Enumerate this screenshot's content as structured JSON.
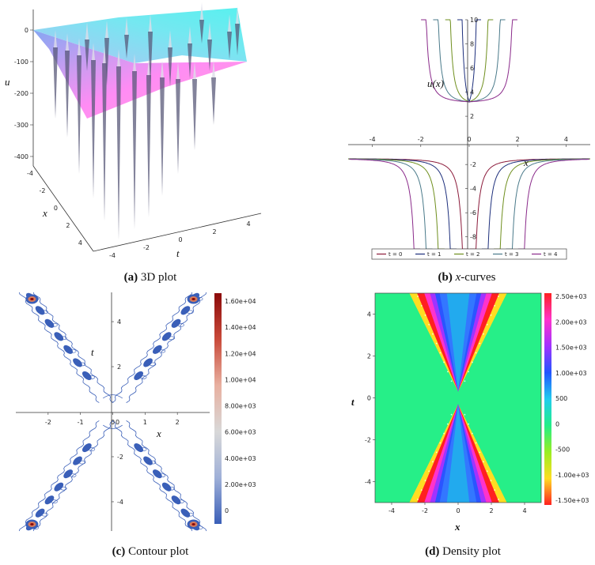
{
  "captions": {
    "a": {
      "letter": "(a)",
      "text": "3D plot"
    },
    "b": {
      "letter": "(b)",
      "text_x": "x",
      "text_rest": "-curves"
    },
    "c": {
      "letter": "(c)",
      "text": "Contour plot"
    },
    "d": {
      "letter": "(d)",
      "text": "Density plot"
    }
  },
  "chart_data": [
    {
      "id": "a",
      "type": "surface",
      "zlabel": "u",
      "xlabel": "x",
      "ylabel": "t",
      "z_ticks": [
        "0",
        "-100",
        "-200",
        "-300",
        "-400"
      ],
      "x_ticks": [
        "-4",
        "-2",
        "0",
        "2",
        "4"
      ],
      "t_ticks": [
        "-4",
        "-2",
        "0",
        "2",
        "4"
      ],
      "colors": [
        "#55e8ee",
        "#7ab2f0",
        "#c98bf2",
        "#ff7ff6"
      ]
    },
    {
      "id": "b",
      "type": "line",
      "xlabel": "x",
      "ylabel": "u(x)",
      "xlim": [
        -5,
        5
      ],
      "ylim": [
        -9,
        10
      ],
      "x_ticks": [
        -4,
        -2,
        0,
        2,
        4
      ],
      "y_ticks": [
        -8,
        -6,
        -4,
        -2,
        2,
        4,
        6,
        8,
        10
      ],
      "legend_position": "bottom",
      "series": [
        {
          "name": "t = 0",
          "color": "#8b1a3a",
          "singularity": 0.0
        },
        {
          "name": "t = 1",
          "color": "#1d2f7c",
          "singularity": 0.5
        },
        {
          "name": "t = 2",
          "color": "#6f8f1e",
          "singularity": 1.0
        },
        {
          "name": "t = 3",
          "color": "#4a7a8a",
          "singularity": 1.5
        },
        {
          "name": "t = 4",
          "color": "#8a2a8a",
          "singularity": 2.0
        }
      ]
    },
    {
      "id": "c",
      "type": "contour",
      "xlabel": "x",
      "ylabel": "t",
      "xlim": [
        -3,
        3
      ],
      "ylim": [
        -5.3,
        5.3
      ],
      "x_ticks": [
        -2,
        -1,
        0,
        1,
        2
      ],
      "y_ticks": [
        -4,
        -2,
        2,
        4
      ],
      "colorbar_ticks": [
        "1.60e+04",
        "1.40e+04",
        "1.20e+04",
        "1.00e+04",
        "8.00e+03",
        "6.00e+03",
        "4.00e+03",
        "2.00e+03",
        "0"
      ],
      "colorbar_colors": [
        "#8b0a0a",
        "#c94a3a",
        "#e8b0a0",
        "#d8d8d8",
        "#9fb0d8",
        "#3a5fb8"
      ]
    },
    {
      "id": "d",
      "type": "heatmap",
      "xlabel": "x",
      "ylabel": "t",
      "xlim": [
        -5,
        5
      ],
      "ylim": [
        -5,
        5
      ],
      "x_ticks": [
        -4,
        -2,
        0,
        2,
        4
      ],
      "y_ticks": [
        -4,
        -2,
        0,
        2,
        4
      ],
      "colorbar_ticks": [
        "2.50e+03",
        "2.00e+03",
        "1.50e+03",
        "1.00e+03",
        "500",
        "0",
        "-500",
        "-1.00e+03",
        "-1.50e+03"
      ],
      "colorbar_colors": [
        "#ff2020",
        "#ff33cc",
        "#a033ff",
        "#2255ff",
        "#22ccee",
        "#22ee88",
        "#99ee22",
        "#ffdd22",
        "#ff2020"
      ]
    }
  ]
}
